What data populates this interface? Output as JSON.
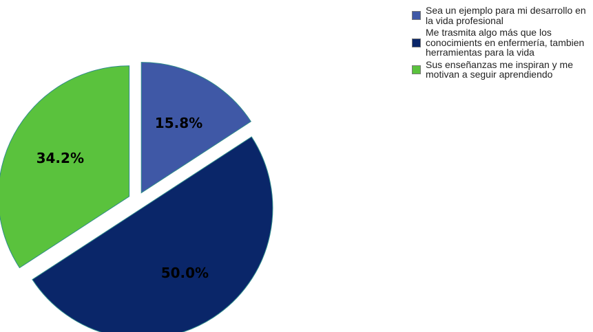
{
  "chart_data": {
    "type": "pie",
    "exploded": true,
    "categories": [
      "Sea un ejemplo para mi desarrollo en la vida profesional",
      "Me trasmita algo más que los conocimients en enfermería, tambien herramientas para la vida",
      "Sus enseñanzas me inspiran y me motivan a seguir aprendiendo"
    ],
    "values": [
      15.8,
      50.0,
      34.2
    ],
    "data_labels": [
      "15.8%",
      "50.0%",
      "34.2%"
    ],
    "colors": [
      "#3F58A6",
      "#0A2669",
      "#5AC23D"
    ],
    "legend_position": "top-right"
  }
}
